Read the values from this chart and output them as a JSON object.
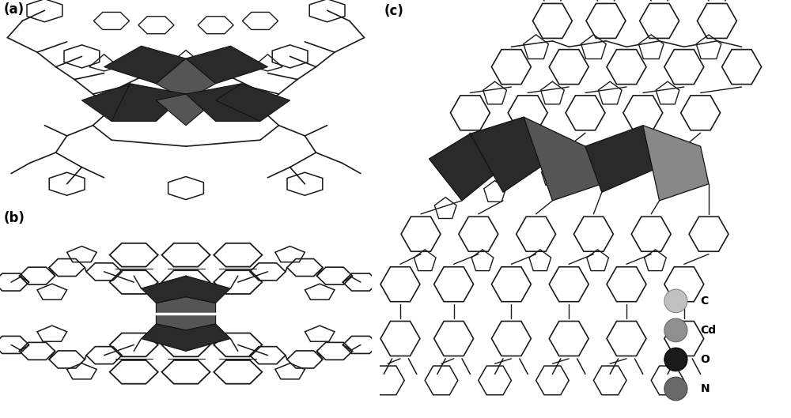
{
  "background_color": "#ffffff",
  "fig_width": 10.0,
  "fig_height": 5.29,
  "panel_labels": [
    "(a)",
    "(b)",
    "(c)"
  ],
  "panel_label_fontsize": 12,
  "panel_label_fontweight": "bold",
  "legend_items": [
    {
      "label": "C",
      "color": "#c0c0c0",
      "edge": "#888888"
    },
    {
      "label": "Cd",
      "color": "#909090",
      "edge": "#666666"
    },
    {
      "label": "O",
      "color": "#1a1a1a",
      "edge": "#000000"
    },
    {
      "label": "N",
      "color": "#686868",
      "edge": "#444444"
    }
  ],
  "legend_marker_size": 10,
  "legend_fontsize": 10,
  "bond_color": "#1a1a1a",
  "ring_color": "#1a1a1a",
  "poly_dark": "#2a2a2a",
  "poly_mid": "#555555",
  "poly_light": "#888888"
}
